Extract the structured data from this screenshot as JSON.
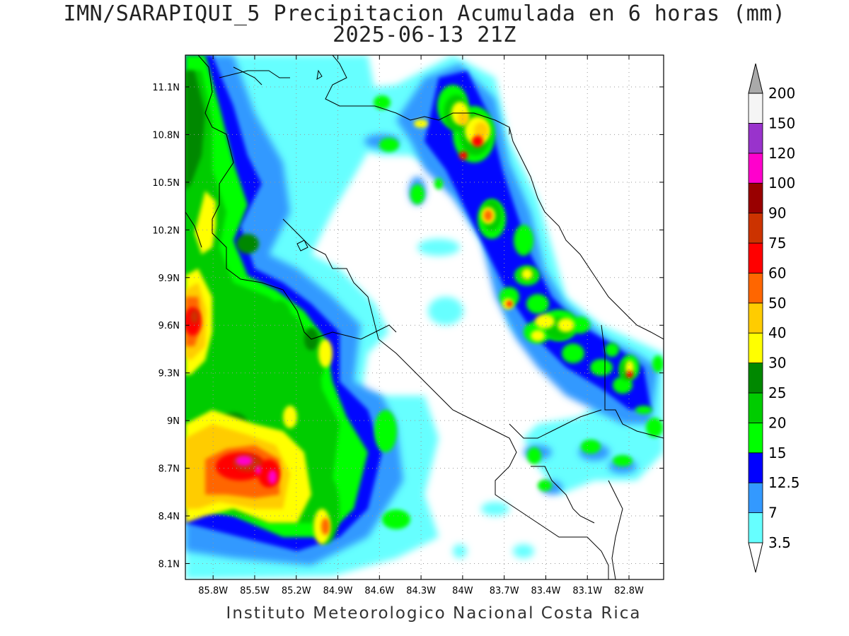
{
  "title_line1": "IMN/SARAPIQUI_5 Precipitacion Acumulada en 6 horas (mm)",
  "title_line2": "2025-06-13 21Z",
  "credit": "Instituto Meteorologico Nacional Costa Rica",
  "map": {
    "lon_range": [
      -86.0,
      -82.55
    ],
    "lat_range": [
      8.0,
      11.3
    ],
    "lon_tick_values": [
      -85.8,
      -85.5,
      -85.2,
      -84.9,
      -84.6,
      -84.3,
      -84.0,
      -83.7,
      -83.4,
      -83.1,
      -82.8
    ],
    "lon_ticks": [
      "85.8W",
      "85.5W",
      "85.2W",
      "84.9W",
      "84.6W",
      "84.3W",
      "84W",
      "83.7W",
      "83.4W",
      "83.1W",
      "82.8W"
    ],
    "lat_tick_values": [
      8.1,
      8.4,
      8.7,
      9.0,
      9.3,
      9.6,
      9.9,
      10.2,
      10.5,
      10.8,
      11.1
    ],
    "lat_ticks": [
      "8.1N",
      "8.4N",
      "8.7N",
      "9N",
      "9.3N",
      "9.6N",
      "9.9N",
      "10.2N",
      "10.5N",
      "10.8N",
      "11.1N"
    ],
    "grid": true
  },
  "colorbar": {
    "labels": [
      "3.5",
      "7",
      "12.5",
      "15",
      "20",
      "25",
      "30",
      "40",
      "50",
      "60",
      "75",
      "90",
      "100",
      "120",
      "150",
      "200"
    ],
    "colors": [
      "#ffffff",
      "#66ffff",
      "#3399ff",
      "#0000ff",
      "#00ff00",
      "#00cc00",
      "#008800",
      "#ffff00",
      "#ffcc00",
      "#ff6600",
      "#ff0000",
      "#cc3300",
      "#990000",
      "#ff00cc",
      "#9933cc",
      "#f5f5f5",
      "#aaaaaa"
    ],
    "icon_bottom": "triangle-open-icon",
    "icon_top": "triangle-gray-icon"
  }
}
